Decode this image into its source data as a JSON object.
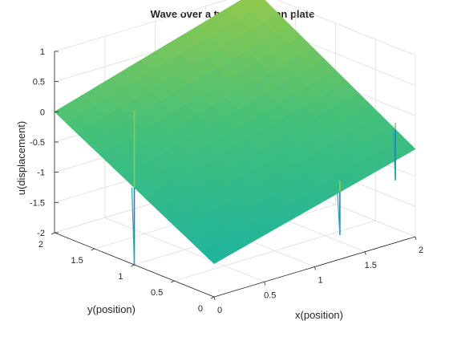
{
  "chart_data": {
    "type": "surface",
    "title": "Wave over a two-dimension plate",
    "xlabel": "x(position)",
    "ylabel": "y(position)",
    "zlabel": "u(displacement)",
    "xlim": [
      0,
      2
    ],
    "ylim": [
      0,
      2
    ],
    "zlim": [
      -2,
      1
    ],
    "xticks": [
      0,
      0.5,
      1,
      1.5,
      2
    ],
    "yticks": [
      0,
      0.5,
      1,
      1.5,
      2
    ],
    "zticks": [
      1,
      0.5,
      0,
      -0.5,
      -1,
      -1.5,
      -2
    ],
    "xtick_labels": [
      "0",
      "0.5",
      "1",
      "1.5",
      "2"
    ],
    "ytick_labels": [
      "0",
      "0.5",
      "1",
      "1.5",
      "2"
    ],
    "ztick_labels": [
      "1",
      "0.5",
      "0",
      "-0.5",
      "-1",
      "-1.5",
      "-2"
    ],
    "grid": true,
    "colormap": "parula",
    "surface": {
      "corners": [
        {
          "x": 0,
          "y": 0,
          "u": -1.45
        },
        {
          "x": 2,
          "y": 0,
          "u": -0.55
        },
        {
          "x": 2,
          "y": 2,
          "u": 1.0
        },
        {
          "x": 0,
          "y": 2,
          "u": 0.0
        }
      ],
      "spikes": [
        {
          "x": 0.0,
          "y": 1.0,
          "u_min": -2.0,
          "u_max": 0.55
        },
        {
          "x": 1.25,
          "y": 0.0,
          "u_min": -1.6,
          "u_max": -0.7
        },
        {
          "x": 2.0,
          "y": 0.25,
          "u_min": -1.2,
          "u_max": -0.25
        }
      ]
    },
    "colors": {
      "low": "#1fb39d",
      "mid": "#43c07a",
      "high": "#95c94b",
      "spike_low": "#2878d8"
    }
  }
}
